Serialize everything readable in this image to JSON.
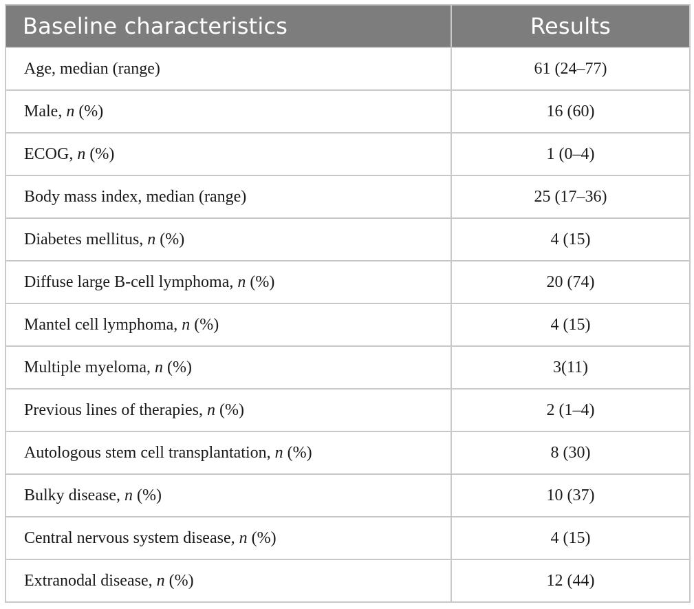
{
  "header": {
    "col1": "Baseline characteristics",
    "col2": "Results"
  },
  "rows": [
    {
      "label": "Age, median (range)",
      "value": "61 (24–77)"
    },
    {
      "label": "Male, ",
      "n": "n",
      "suffix": " (%)",
      "value": "16 (60)"
    },
    {
      "label": "ECOG, ",
      "n": "n",
      "suffix": " (%)",
      "value": "1 (0–4)"
    },
    {
      "label": "Body mass index, median (range)",
      "value": "25 (17–36)"
    },
    {
      "label": "Diabetes mellitus, ",
      "n": "n",
      "suffix": " (%)",
      "value": "4 (15)"
    },
    {
      "label": "Diffuse large B-cell lymphoma, ",
      "n": "n",
      "suffix": " (%)",
      "value": "20 (74)"
    },
    {
      "label": "Mantel cell lymphoma, ",
      "n": "n",
      "suffix": " (%)",
      "value": "4 (15)"
    },
    {
      "label": "Multiple myeloma, ",
      "n": "n",
      "suffix": " (%)",
      "value": "3(11)"
    },
    {
      "label": "Previous lines of therapies, ",
      "n": "n",
      "suffix": " (%)",
      "value": "2 (1–4)"
    },
    {
      "label": "Autologous stem cell transplantation, ",
      "n": "n",
      "suffix": " (%)",
      "value": "8 (30)"
    },
    {
      "label": "Bulky disease, ",
      "n": "n",
      "suffix": " (%)",
      "value": "10 (37)"
    },
    {
      "label": "Central nervous system disease, ",
      "n": "n",
      "suffix": " (%)",
      "value": "4 (15)"
    },
    {
      "label": "Extranodal disease, ",
      "n": "n",
      "suffix": " (%)",
      "value": "12 (44)"
    }
  ]
}
